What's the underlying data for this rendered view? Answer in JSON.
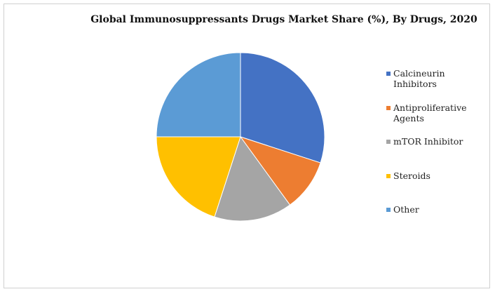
{
  "chart_data": {
    "type": "pie",
    "title": "Global Immunosuppressants Drugs Market Share (%), By Drugs, 2020",
    "categories": [
      "Calcineurin Inhibitors",
      "Antiproliferative Agents",
      "mTOR Inhibitor",
      "Steroids",
      "Other"
    ],
    "values": [
      30,
      10,
      15,
      20,
      25
    ],
    "colors": [
      "#4472c4",
      "#ed7d31",
      "#a5a5a5",
      "#ffc000",
      "#5b9bd5"
    ],
    "legend": "right"
  }
}
